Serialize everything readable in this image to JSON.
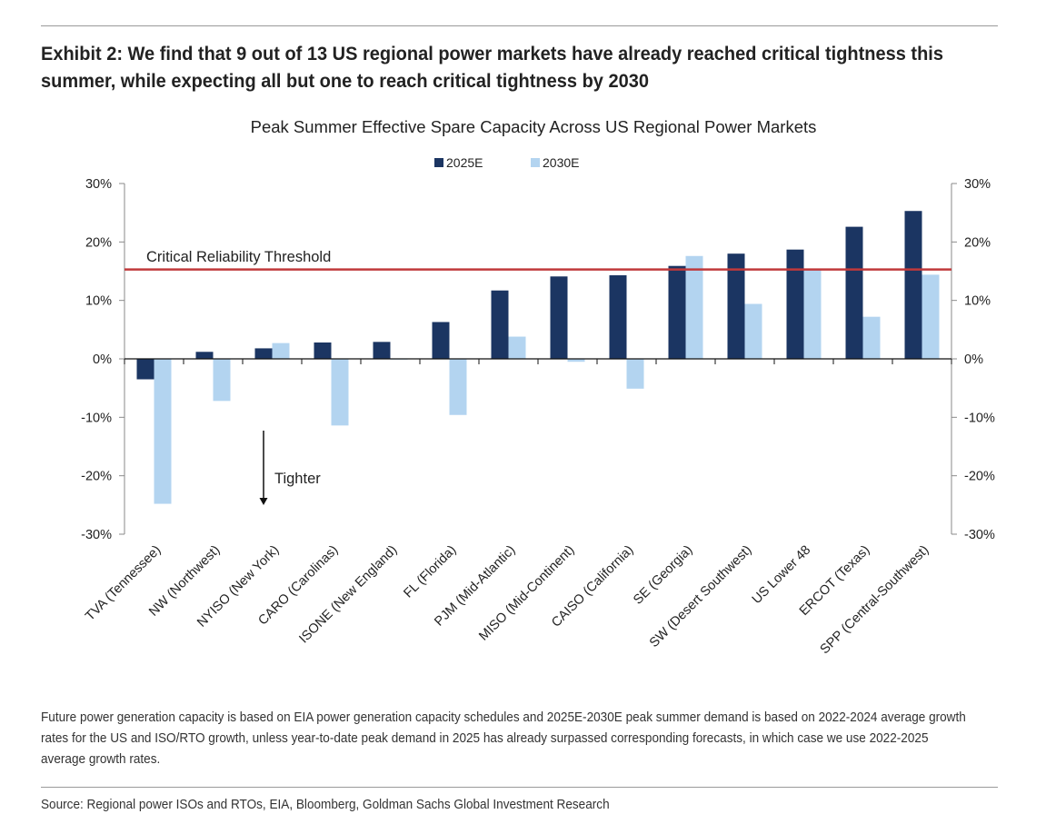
{
  "exhibit": {
    "title": "Exhibit 2: We find that 9 out of 13 US regional power markets have already reached critical tightness this summer, while expecting all but one to reach critical tightness by 2030"
  },
  "footnote": "Future power generation capacity is based on EIA power generation capacity schedules and 2025E-2030E peak summer demand is based on 2022-2024 average growth rates for the US and ISO/RTO growth, unless year-to-date peak demand in 2025 has already surpassed corresponding forecasts, in which case we use 2022-2025 average growth rates.",
  "source": "Source: Regional power ISOs and RTOs, EIA, Bloomberg, Goldman Sachs Global Investment Research",
  "chart_data": {
    "type": "bar",
    "title": "Peak Summer Effective Spare Capacity Across US Regional Power Markets",
    "xlabel": "",
    "ylabel": "",
    "ylim": [
      -30,
      30
    ],
    "yticks": [
      -30,
      -20,
      -10,
      0,
      10,
      20,
      30
    ],
    "ytick_labels": [
      "-30%",
      "-20%",
      "-10%",
      "0%",
      "10%",
      "20%",
      "30%"
    ],
    "legend_position": "top-center",
    "grid": false,
    "categories": [
      "TVA (Tennessee)",
      "NW (Northwest)",
      "NYISO (New York)",
      "CARO (Carolinas)",
      "ISONE (New England)",
      "FL (Florida)",
      "PJM (Mid-Atlantic)",
      "MISO (Mid-Continent)",
      "CAISO (California)",
      "SE (Georgia)",
      "SW (Desert Southwest)",
      "US Lower 48",
      "ERCOT (Texas)",
      "SPP (Central-Southwest)"
    ],
    "series": [
      {
        "name": "2025E",
        "color": "#1b3562",
        "values": [
          -3.5,
          1.2,
          1.8,
          2.8,
          2.9,
          6.3,
          11.7,
          14.1,
          14.3,
          15.9,
          18.0,
          18.7,
          22.6,
          25.3
        ]
      },
      {
        "name": "2030E",
        "color": "#b3d4f0",
        "values": [
          -24.8,
          -7.2,
          2.7,
          -11.4,
          0.0,
          -9.6,
          3.8,
          -0.5,
          -5.1,
          17.6,
          9.4,
          15.2,
          7.2,
          14.4
        ]
      }
    ],
    "threshold": {
      "label": "Critical Reliability Threshold",
      "value": 15.3,
      "color": "#c0393b"
    },
    "annotation": {
      "label": "Tighter"
    }
  }
}
